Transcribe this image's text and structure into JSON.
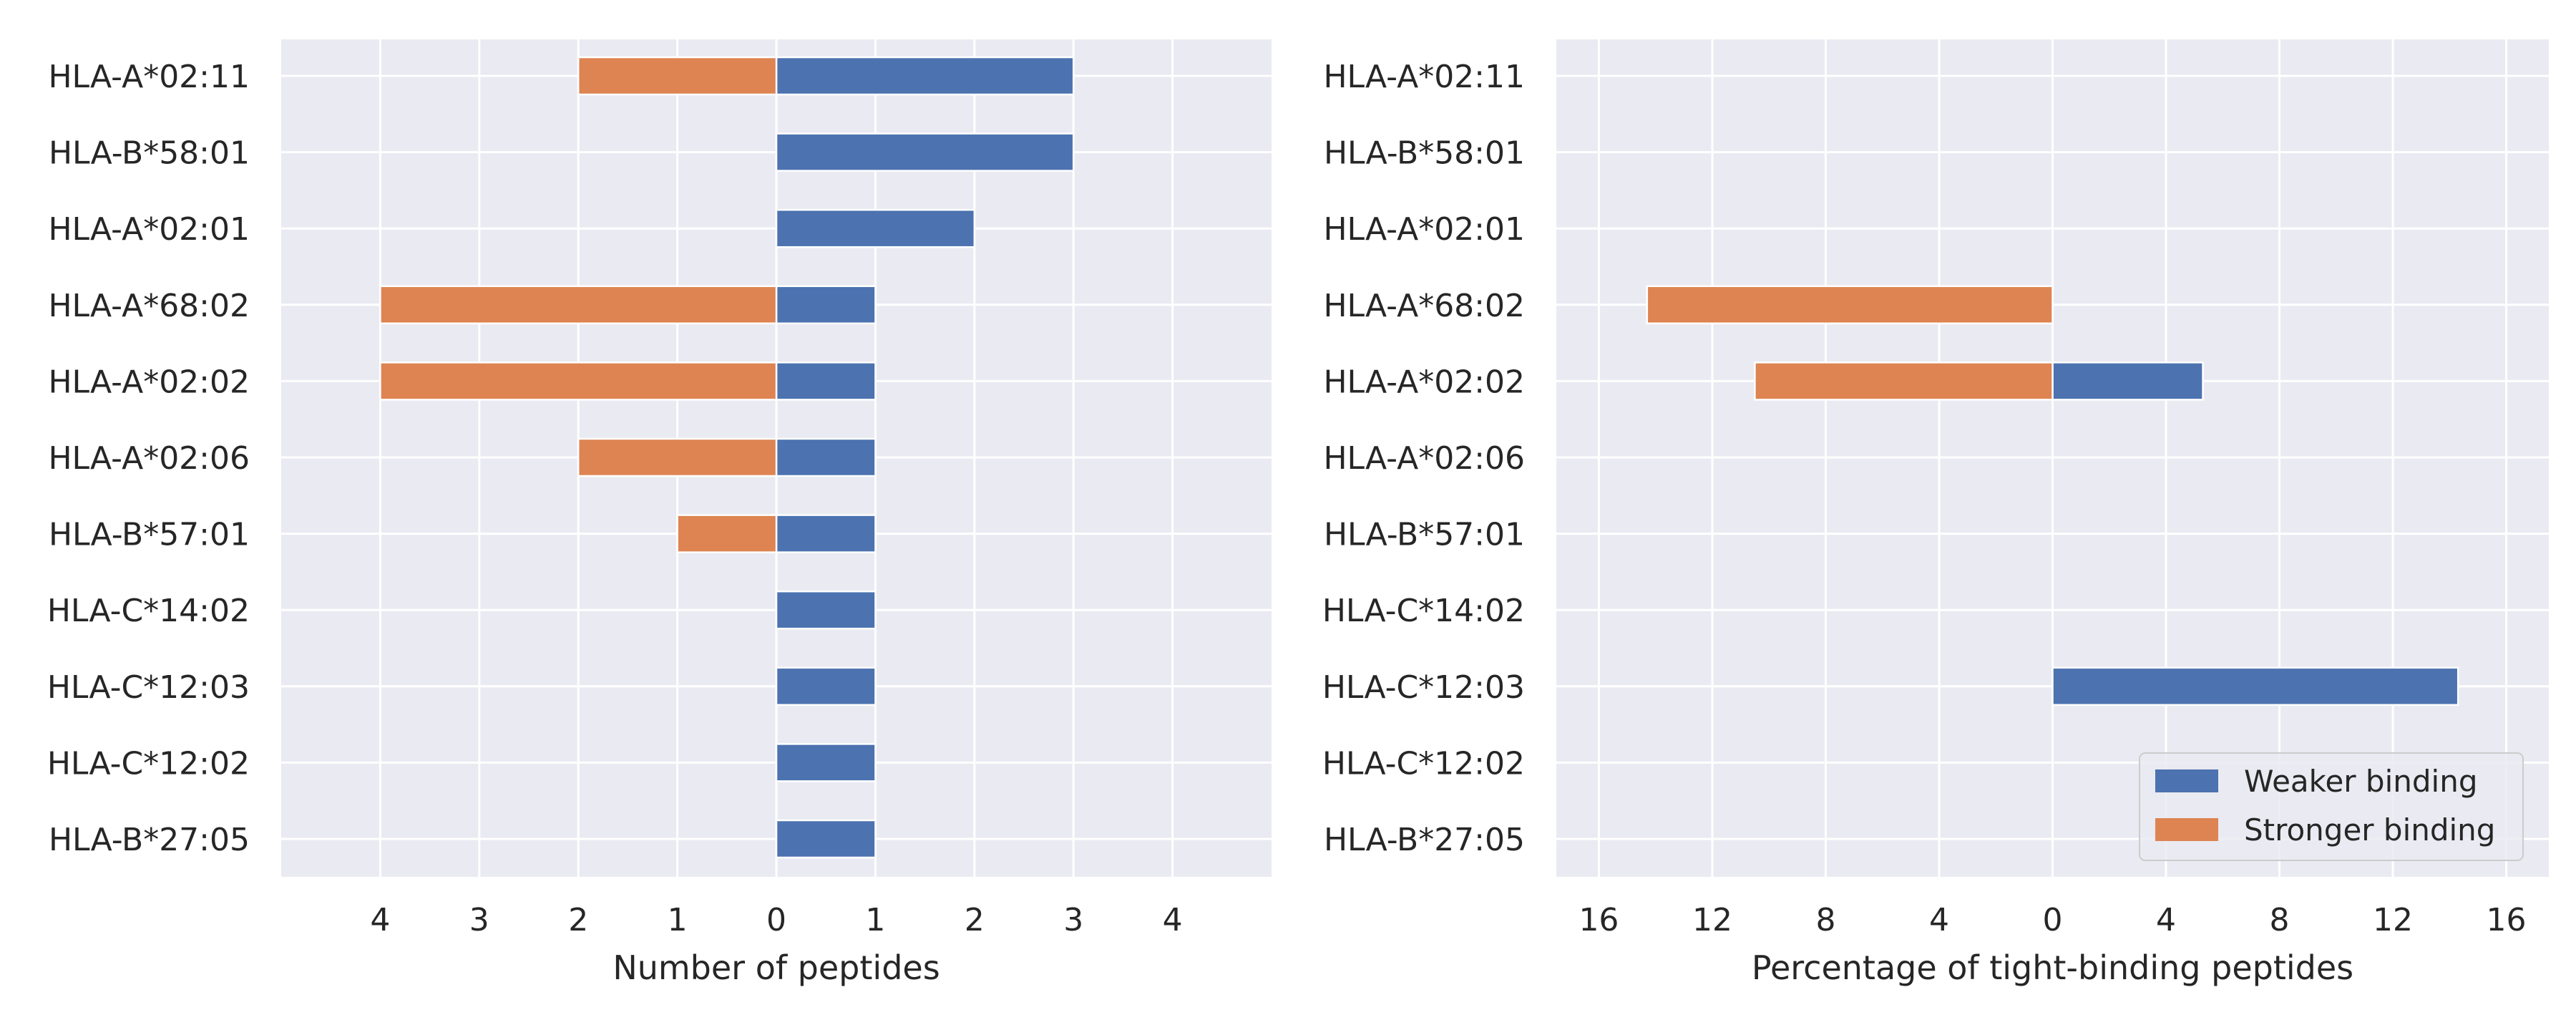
{
  "colors": {
    "weaker": "#4c72b0",
    "stronger": "#dd8452",
    "panel_bg": "#eaeaf2",
    "grid": "#ffffff",
    "text": "#262626"
  },
  "legend": {
    "weaker_label": "Weaker binding",
    "stronger_label": "Stronger binding",
    "placement": "lower-right of right panel"
  },
  "chart_data": [
    {
      "type": "bar",
      "orientation": "horizontal-diverging",
      "xlabel": "Number of peptides",
      "xlim": [
        -5,
        5
      ],
      "xticks": [
        -4,
        -3,
        -2,
        -1,
        0,
        1,
        2,
        3,
        4
      ],
      "xtick_labels": [
        "4",
        "3",
        "2",
        "1",
        "0",
        "1",
        "2",
        "3",
        "4"
      ],
      "grid": true,
      "categories": [
        "HLA-A*02:11",
        "HLA-B*58:01",
        "HLA-A*02:01",
        "HLA-A*68:02",
        "HLA-A*02:02",
        "HLA-A*02:06",
        "HLA-B*57:01",
        "HLA-C*14:02",
        "HLA-C*12:03",
        "HLA-C*12:02",
        "HLA-B*27:05"
      ],
      "series": [
        {
          "name": "Weaker binding",
          "direction": "right",
          "values": [
            3,
            3,
            2,
            1,
            1,
            1,
            1,
            1,
            1,
            1,
            1
          ]
        },
        {
          "name": "Stronger binding",
          "direction": "left",
          "values": [
            2,
            0,
            0,
            4,
            4,
            2,
            1,
            0,
            0,
            0,
            0
          ]
        }
      ]
    },
    {
      "type": "bar",
      "orientation": "horizontal-diverging",
      "xlabel": "Percentage of tight-binding peptides",
      "xlim": [
        -17.5,
        17.5
      ],
      "xticks": [
        -16,
        -12,
        -8,
        -4,
        0,
        4,
        8,
        12,
        16
      ],
      "xtick_labels": [
        "16",
        "12",
        "8",
        "4",
        "0",
        "4",
        "8",
        "12",
        "16"
      ],
      "grid": true,
      "categories": [
        "HLA-A*02:11",
        "HLA-B*58:01",
        "HLA-A*02:01",
        "HLA-A*68:02",
        "HLA-A*02:02",
        "HLA-A*02:06",
        "HLA-B*57:01",
        "HLA-C*14:02",
        "HLA-C*12:03",
        "HLA-C*12:02",
        "HLA-B*27:05"
      ],
      "series": [
        {
          "name": "Weaker binding",
          "direction": "right",
          "values": [
            0,
            0,
            0,
            0,
            5.3,
            0,
            0,
            0,
            14.3,
            0,
            0
          ]
        },
        {
          "name": "Stronger binding",
          "direction": "left",
          "values": [
            0,
            0,
            0,
            14.3,
            10.5,
            0,
            0,
            0,
            0,
            0,
            0
          ]
        }
      ]
    }
  ]
}
